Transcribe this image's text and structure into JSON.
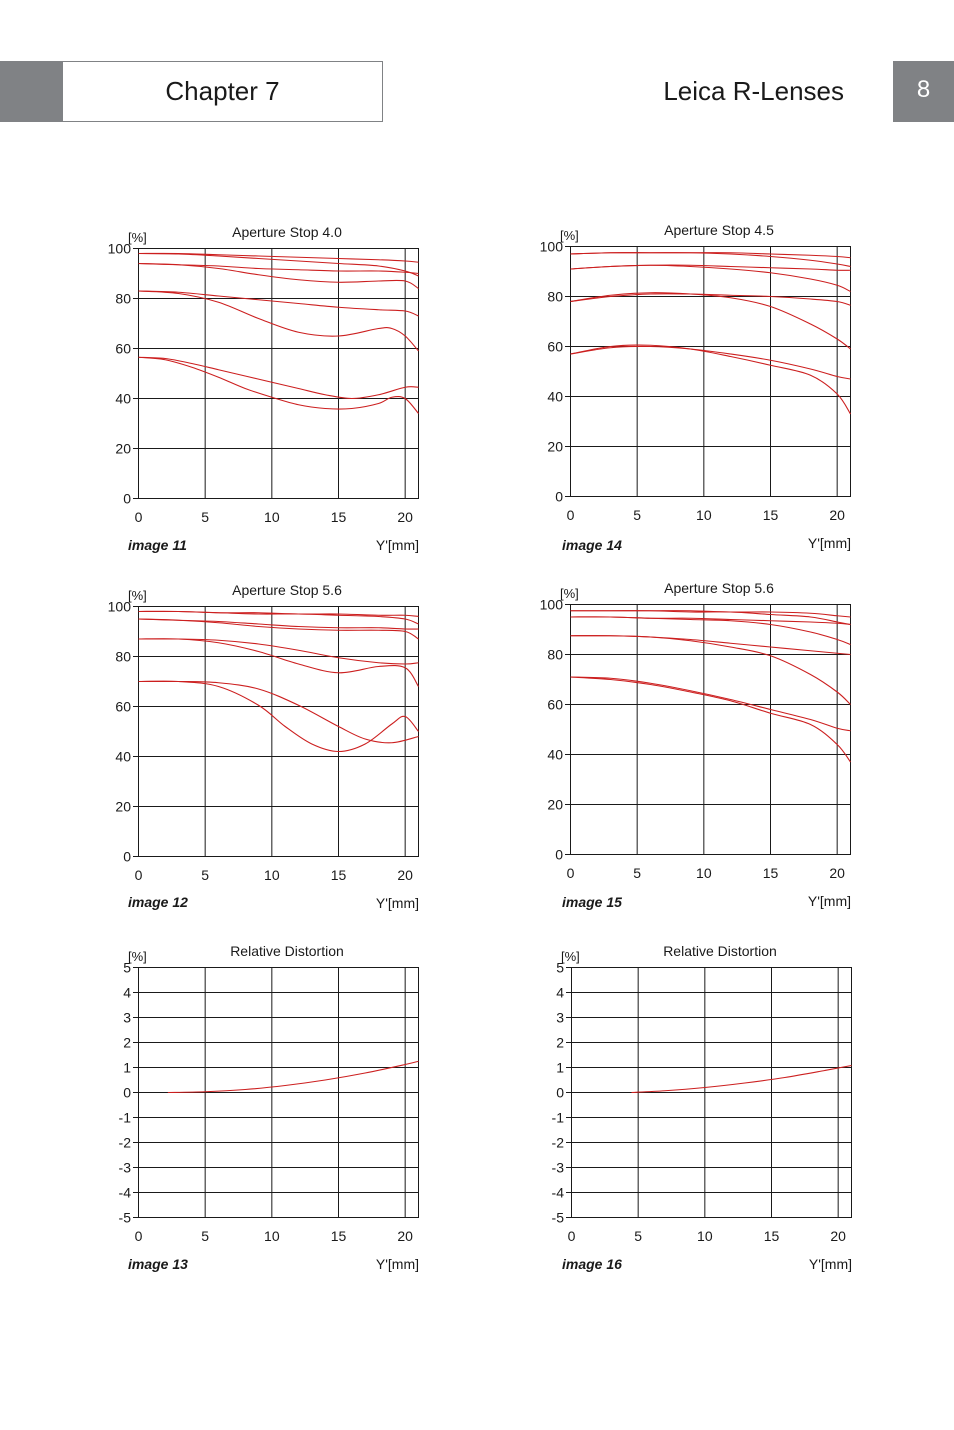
{
  "header": {
    "chapter": "Chapter 7",
    "title": "Leica R-Lenses",
    "page_number": "8"
  },
  "colors": {
    "header_gray": "#808285",
    "curve_red": "#cc1f1f",
    "grid": "#1a1a1a"
  },
  "chart_data": [
    {
      "id": "image-11",
      "type": "line",
      "title": "Aperture Stop 4.0",
      "ylabel": "[%]",
      "xlabel": "Y'[mm]",
      "caption": "image 11",
      "x_ticks": [
        0,
        5,
        10,
        15,
        20
      ],
      "y_ticks": [
        0,
        20,
        40,
        60,
        80,
        100
      ],
      "xlim": [
        0,
        21
      ],
      "ylim": [
        0,
        100
      ],
      "grid": true,
      "series": [
        {
          "x": [
            0,
            3,
            6,
            9,
            12,
            15,
            18,
            20,
            21
          ],
          "y": [
            98,
            98,
            97.5,
            97,
            96.5,
            96,
            95.5,
            95,
            94.5
          ]
        },
        {
          "x": [
            0,
            3,
            6,
            9,
            12,
            15,
            18,
            20,
            21
          ],
          "y": [
            98,
            97.8,
            97,
            96,
            95,
            94,
            93,
            91,
            89
          ]
        },
        {
          "x": [
            0,
            3,
            6,
            9,
            12,
            15,
            18,
            20,
            21
          ],
          "y": [
            94,
            93.5,
            93,
            92,
            91.5,
            91,
            91,
            90.5,
            90
          ]
        },
        {
          "x": [
            0,
            3,
            6,
            9,
            12,
            15,
            18,
            20,
            21
          ],
          "y": [
            94,
            93.5,
            92,
            89.5,
            87.5,
            86.5,
            87,
            87,
            84
          ]
        },
        {
          "x": [
            0,
            3,
            6,
            9,
            12,
            15,
            18,
            20,
            21
          ],
          "y": [
            83,
            82.5,
            81,
            79.5,
            78,
            76.5,
            75.5,
            75,
            73
          ]
        },
        {
          "x": [
            0,
            3,
            6,
            9,
            12,
            15,
            18,
            19,
            20,
            21
          ],
          "y": [
            83,
            82,
            78.5,
            72,
            66.5,
            65,
            68,
            68,
            65,
            59
          ]
        },
        {
          "x": [
            0,
            2,
            4,
            6,
            8,
            10,
            12,
            14,
            16,
            18,
            20,
            21
          ],
          "y": [
            56.5,
            56,
            54,
            51.5,
            49,
            46.5,
            44,
            41.5,
            40,
            41.5,
            44.5,
            44.5
          ]
        },
        {
          "x": [
            0,
            2,
            4,
            6,
            8,
            10,
            12,
            14,
            16,
            18,
            19,
            20,
            21
          ],
          "y": [
            56.5,
            55.5,
            52.5,
            48.5,
            44,
            40.5,
            37.5,
            36,
            36,
            38,
            40.5,
            40,
            34
          ]
        }
      ]
    },
    {
      "id": "image-14",
      "type": "line",
      "title": "Aperture Stop 4.5",
      "ylabel": "[%]",
      "xlabel": "Y'[mm]",
      "caption": "image 14",
      "x_ticks": [
        0,
        5,
        10,
        15,
        20
      ],
      "y_ticks": [
        0,
        20,
        40,
        60,
        80,
        100
      ],
      "xlim": [
        0,
        21
      ],
      "ylim": [
        0,
        100
      ],
      "grid": true,
      "series": [
        {
          "x": [
            0,
            3,
            6,
            9,
            12,
            15,
            18,
            20,
            21
          ],
          "y": [
            97,
            97.5,
            97.5,
            97.5,
            97.5,
            97,
            96.5,
            96,
            95.5
          ]
        },
        {
          "x": [
            0,
            3,
            6,
            9,
            12,
            15,
            18,
            20,
            21
          ],
          "y": [
            97,
            97.5,
            97.5,
            97.5,
            97,
            96,
            94.5,
            93,
            92
          ]
        },
        {
          "x": [
            0,
            3,
            6,
            9,
            12,
            15,
            18,
            20,
            21
          ],
          "y": [
            91,
            92,
            92.5,
            92.5,
            92,
            91.5,
            91,
            90.5,
            90.5
          ]
        },
        {
          "x": [
            0,
            3,
            6,
            9,
            12,
            15,
            18,
            20,
            21
          ],
          "y": [
            91,
            92,
            92.5,
            92,
            91,
            89.5,
            87,
            84.5,
            82
          ]
        },
        {
          "x": [
            0,
            3,
            6,
            9,
            12,
            15,
            18,
            20,
            21
          ],
          "y": [
            78,
            80,
            81,
            81,
            80.5,
            80,
            79,
            78,
            76.5
          ]
        },
        {
          "x": [
            0,
            3,
            6,
            9,
            12,
            15,
            18,
            20,
            21
          ],
          "y": [
            78,
            80.5,
            81.5,
            81,
            79.5,
            76,
            69,
            63,
            59
          ]
        },
        {
          "x": [
            0,
            3,
            6,
            9,
            12,
            15,
            18,
            20,
            21
          ],
          "y": [
            57,
            59.5,
            60,
            59,
            57,
            54.5,
            51,
            48,
            47
          ]
        },
        {
          "x": [
            0,
            3,
            6,
            9,
            12,
            15,
            18,
            20,
            21
          ],
          "y": [
            57,
            60,
            60.5,
            59,
            56,
            52.5,
            48.5,
            41,
            33
          ]
        }
      ]
    },
    {
      "id": "image-12",
      "type": "line",
      "title": "Aperture Stop 5.6",
      "ylabel": "[%]",
      "xlabel": "Y'[mm]",
      "caption": "image 12",
      "x_ticks": [
        0,
        5,
        10,
        15,
        20
      ],
      "y_ticks": [
        0,
        20,
        40,
        60,
        80,
        100
      ],
      "xlim": [
        0,
        21
      ],
      "ylim": [
        0,
        100
      ],
      "grid": true,
      "series": [
        {
          "x": [
            0,
            3,
            6,
            9,
            12,
            15,
            18,
            20,
            21
          ],
          "y": [
            98,
            98,
            97.5,
            97.5,
            97,
            97,
            96.5,
            96.5,
            96
          ]
        },
        {
          "x": [
            0,
            3,
            6,
            9,
            12,
            15,
            18,
            20,
            21
          ],
          "y": [
            98,
            98,
            97.5,
            97,
            97,
            96.5,
            96,
            95,
            93
          ]
        },
        {
          "x": [
            0,
            3,
            6,
            9,
            12,
            15,
            18,
            20,
            21
          ],
          "y": [
            95,
            94.5,
            94,
            93,
            92,
            91.5,
            91.5,
            91,
            91
          ]
        },
        {
          "x": [
            0,
            3,
            6,
            9,
            12,
            15,
            18,
            20,
            21
          ],
          "y": [
            95,
            94.5,
            93.5,
            92,
            91,
            90.5,
            90.5,
            90,
            87
          ]
        },
        {
          "x": [
            0,
            3,
            6,
            9,
            12,
            15,
            18,
            20,
            21
          ],
          "y": [
            87,
            87,
            86.5,
            85,
            82.5,
            79.5,
            77.5,
            77,
            77.5
          ]
        },
        {
          "x": [
            0,
            3,
            6,
            9,
            12,
            15,
            18,
            20,
            21
          ],
          "y": [
            87,
            87,
            85.5,
            82,
            77,
            73.5,
            76,
            75.5,
            68
          ]
        },
        {
          "x": [
            0,
            3,
            6,
            9,
            12,
            15,
            17,
            19,
            21
          ],
          "y": [
            70,
            70,
            69.5,
            67,
            60.5,
            52,
            47,
            45.5,
            48
          ]
        },
        {
          "x": [
            0,
            3,
            6,
            9,
            11,
            13,
            15,
            17,
            19,
            20,
            21
          ],
          "y": [
            70,
            70,
            68,
            60.5,
            52,
            45,
            42,
            45,
            53,
            56,
            50
          ]
        }
      ]
    },
    {
      "id": "image-15",
      "type": "line",
      "title": "Aperture Stop 5.6",
      "ylabel": "[%]",
      "xlabel": "Y'[mm]",
      "caption": "image 15",
      "x_ticks": [
        0,
        5,
        10,
        15,
        20
      ],
      "y_ticks": [
        0,
        20,
        40,
        60,
        80,
        100
      ],
      "xlim": [
        0,
        21
      ],
      "ylim": [
        0,
        100
      ],
      "grid": true,
      "series": [
        {
          "x": [
            0,
            3,
            6,
            9,
            12,
            15,
            18,
            20,
            21
          ],
          "y": [
            97.5,
            97.5,
            97.5,
            97.5,
            97,
            97,
            96.5,
            95.5,
            95
          ]
        },
        {
          "x": [
            0,
            3,
            6,
            9,
            12,
            15,
            18,
            20,
            21
          ],
          "y": [
            97.5,
            97.5,
            97.5,
            97,
            97,
            96,
            95,
            93,
            92
          ]
        },
        {
          "x": [
            0,
            3,
            6,
            9,
            12,
            15,
            18,
            20,
            21
          ],
          "y": [
            95,
            95,
            94.5,
            94.5,
            94,
            93.5,
            93,
            92.5,
            92
          ]
        },
        {
          "x": [
            0,
            3,
            6,
            9,
            12,
            15,
            18,
            20,
            21
          ],
          "y": [
            95,
            95,
            94.5,
            94,
            93.5,
            92,
            89,
            86,
            84
          ]
        },
        {
          "x": [
            0,
            3,
            6,
            9,
            12,
            15,
            18,
            20,
            21
          ],
          "y": [
            87.5,
            87.5,
            87,
            86,
            84.5,
            83,
            81.5,
            80.5,
            80
          ]
        },
        {
          "x": [
            0,
            3,
            6,
            9,
            12,
            15,
            18,
            20,
            21
          ],
          "y": [
            87.5,
            87.5,
            87,
            85.5,
            83,
            79.5,
            72,
            65,
            60
          ]
        },
        {
          "x": [
            0,
            3,
            6,
            9,
            12,
            15,
            18,
            20,
            21
          ],
          "y": [
            71,
            70.5,
            68.5,
            65.5,
            62,
            58,
            54,
            50.5,
            49.5
          ]
        },
        {
          "x": [
            0,
            3,
            6,
            9,
            12,
            15,
            18,
            20,
            21
          ],
          "y": [
            71,
            70,
            68,
            65,
            61.5,
            56.5,
            52,
            44,
            37
          ]
        }
      ]
    },
    {
      "id": "image-13",
      "type": "line",
      "title": "Relative Distortion",
      "ylabel": "[%]",
      "xlabel": "Y'[mm]",
      "caption": "image 13",
      "x_ticks": [
        0,
        5,
        10,
        15,
        20
      ],
      "y_ticks": [
        -5,
        -4,
        -3,
        -2,
        -1,
        0,
        1,
        2,
        3,
        4,
        5
      ],
      "xlim": [
        0,
        21
      ],
      "ylim": [
        -5,
        5
      ],
      "grid": true,
      "series": [
        {
          "x": [
            2.2,
            5,
            8,
            11,
            14,
            17,
            20,
            21
          ],
          "y": [
            0,
            0.03,
            0.12,
            0.28,
            0.5,
            0.78,
            1.12,
            1.25
          ]
        }
      ]
    },
    {
      "id": "image-16",
      "type": "line",
      "title": "Relative Distortion",
      "ylabel": "[%]",
      "xlabel": "Y'[mm]",
      "caption": "image 16",
      "x_ticks": [
        0,
        5,
        10,
        15,
        20
      ],
      "y_ticks": [
        -5,
        -4,
        -3,
        -2,
        -1,
        0,
        1,
        2,
        3,
        4,
        5
      ],
      "xlim": [
        0,
        21
      ],
      "ylim": [
        -5,
        5
      ],
      "grid": true,
      "series": [
        {
          "x": [
            4.5,
            7,
            10,
            13,
            16,
            19,
            21
          ],
          "y": [
            0,
            0.07,
            0.2,
            0.38,
            0.6,
            0.88,
            1.08
          ]
        }
      ]
    }
  ]
}
